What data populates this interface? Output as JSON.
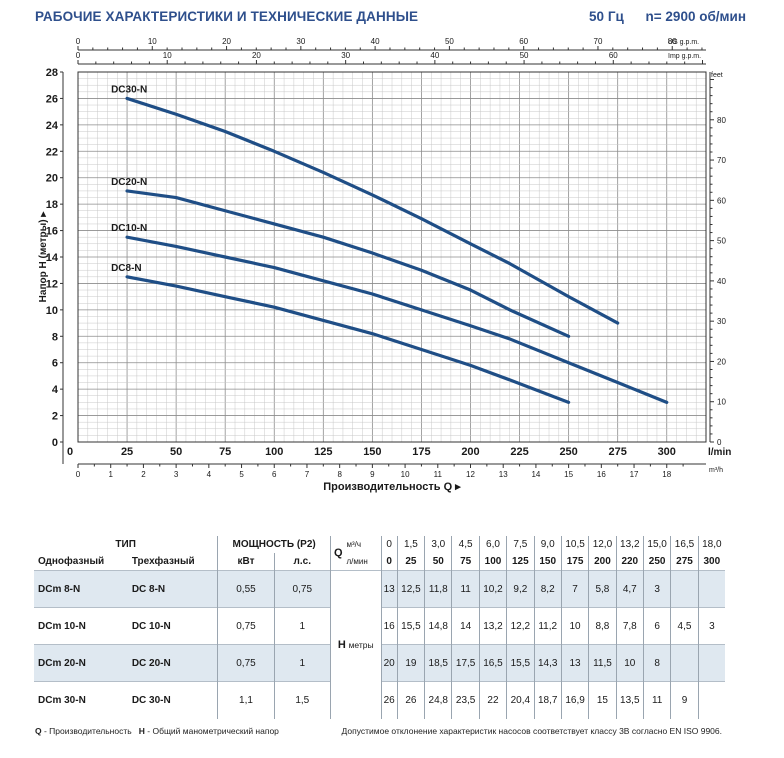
{
  "header": {
    "title": "РАБОЧИЕ ХАРАКТЕРИСТИКИ И ТЕХНИЧЕСКИЕ ДАННЫЕ",
    "frequency": "50 Гц",
    "speed": "n= 2900 об/мин"
  },
  "chart_data": {
    "type": "line",
    "xlabel": "Производительность Q",
    "ylabel": "Напор H (метры)",
    "x_unit": "l/min",
    "xlim": [
      0,
      320
    ],
    "ylim": [
      0,
      28
    ],
    "x_ticks": [
      0,
      25,
      50,
      75,
      100,
      125,
      150,
      175,
      200,
      225,
      250,
      275,
      300
    ],
    "y_ticks": [
      0,
      2,
      4,
      6,
      8,
      10,
      12,
      14,
      16,
      18,
      20,
      22,
      24,
      26,
      28
    ],
    "secondary_axes": {
      "bottom_m3h": {
        "label": "m³/h",
        "ticks": [
          0,
          1,
          2,
          3,
          4,
          5,
          6,
          7,
          8,
          9,
          10,
          11,
          12,
          13,
          14,
          15,
          16,
          17,
          18
        ]
      },
      "top_usgpm": {
        "label": "US g.p.m.",
        "ticks": [
          0,
          10,
          20,
          30,
          40,
          50,
          60,
          70,
          80
        ]
      },
      "top_impgpm": {
        "label": "Imp g.p.m.",
        "ticks": [
          0,
          10,
          20,
          30,
          40,
          50,
          60
        ]
      },
      "right_feet": {
        "label": "feet",
        "ticks": [
          0,
          10,
          20,
          30,
          40,
          50,
          60,
          70,
          80
        ]
      }
    },
    "grid": true,
    "series": [
      {
        "name": "DC30-N",
        "x": [
          25,
          50,
          75,
          100,
          125,
          150,
          175,
          200,
          220,
          250,
          275
        ],
        "y": [
          26,
          24.8,
          23.5,
          22,
          20.4,
          18.7,
          16.9,
          15,
          13.5,
          11,
          9
        ]
      },
      {
        "name": "DC20-N",
        "x": [
          25,
          50,
          75,
          100,
          125,
          150,
          175,
          200,
          220,
          250
        ],
        "y": [
          19,
          18.5,
          17.5,
          16.5,
          15.5,
          14.3,
          13,
          11.5,
          10,
          8
        ]
      },
      {
        "name": "DC10-N",
        "x": [
          25,
          50,
          75,
          100,
          125,
          150,
          175,
          200,
          220,
          250,
          275,
          300
        ],
        "y": [
          15.5,
          14.8,
          14,
          13.2,
          12.2,
          11.2,
          10,
          8.8,
          7.8,
          6,
          4.5,
          3
        ]
      },
      {
        "name": "DC8-N",
        "x": [
          25,
          50,
          75,
          100,
          125,
          150,
          175,
          200,
          220,
          250
        ],
        "y": [
          12.5,
          11.8,
          11,
          10.2,
          9.2,
          8.2,
          7,
          5.8,
          4.7,
          3
        ]
      }
    ]
  },
  "table": {
    "type_header": "ТИП",
    "single_phase": "Однофазный",
    "three_phase": "Трехфазный",
    "power_header": "МОЩНОСТЬ (P2)",
    "kw": "кВт",
    "hp": "л.с.",
    "q_label": "Q",
    "m3h_unit": "м³/ч",
    "lmin_unit": "л/мин",
    "h_label": "H",
    "h_unit": "метры",
    "q_m3h": [
      "0",
      "1,5",
      "3,0",
      "4,5",
      "6,0",
      "7,5",
      "9,0",
      "10,5",
      "12,0",
      "13,2",
      "15,0",
      "16,5",
      "18,0"
    ],
    "q_lmin": [
      "0",
      "25",
      "50",
      "75",
      "100",
      "125",
      "150",
      "175",
      "200",
      "220",
      "250",
      "275",
      "300"
    ],
    "rows": [
      {
        "single": "DCm 8-N",
        "three": "DC 8-N",
        "kw": "0,55",
        "hp": "0,75",
        "h": [
          "13",
          "12,5",
          "11,8",
          "11",
          "10,2",
          "9,2",
          "8,2",
          "7",
          "5,8",
          "4,7",
          "3",
          "",
          ""
        ]
      },
      {
        "single": "DCm 10-N",
        "three": "DC 10-N",
        "kw": "0,75",
        "hp": "1",
        "h": [
          "16",
          "15,5",
          "14,8",
          "14",
          "13,2",
          "12,2",
          "11,2",
          "10",
          "8,8",
          "7,8",
          "6",
          "4,5",
          "3"
        ]
      },
      {
        "single": "DCm 20-N",
        "three": "DC 20-N",
        "kw": "0,75",
        "hp": "1",
        "h": [
          "20",
          "19",
          "18,5",
          "17,5",
          "16,5",
          "15,5",
          "14,3",
          "13",
          "11,5",
          "10",
          "8",
          "",
          ""
        ]
      },
      {
        "single": "DCm 30-N",
        "three": "DC 30-N",
        "kw": "1,1",
        "hp": "1,5",
        "h": [
          "26",
          "26",
          "24,8",
          "23,5",
          "22",
          "20,4",
          "18,7",
          "16,9",
          "15",
          "13,5",
          "11",
          "9",
          ""
        ]
      }
    ]
  },
  "footer": {
    "left": "Q - Производительность   H - Общий манометрический напор",
    "right": "Допустимое отклонение характеристик насосов соответствует классу 3В согласно EN ISO 9906."
  },
  "colors": {
    "accent": "#2e4f8c",
    "curve": "#1f4e86",
    "shade": "#dfe8f0"
  }
}
